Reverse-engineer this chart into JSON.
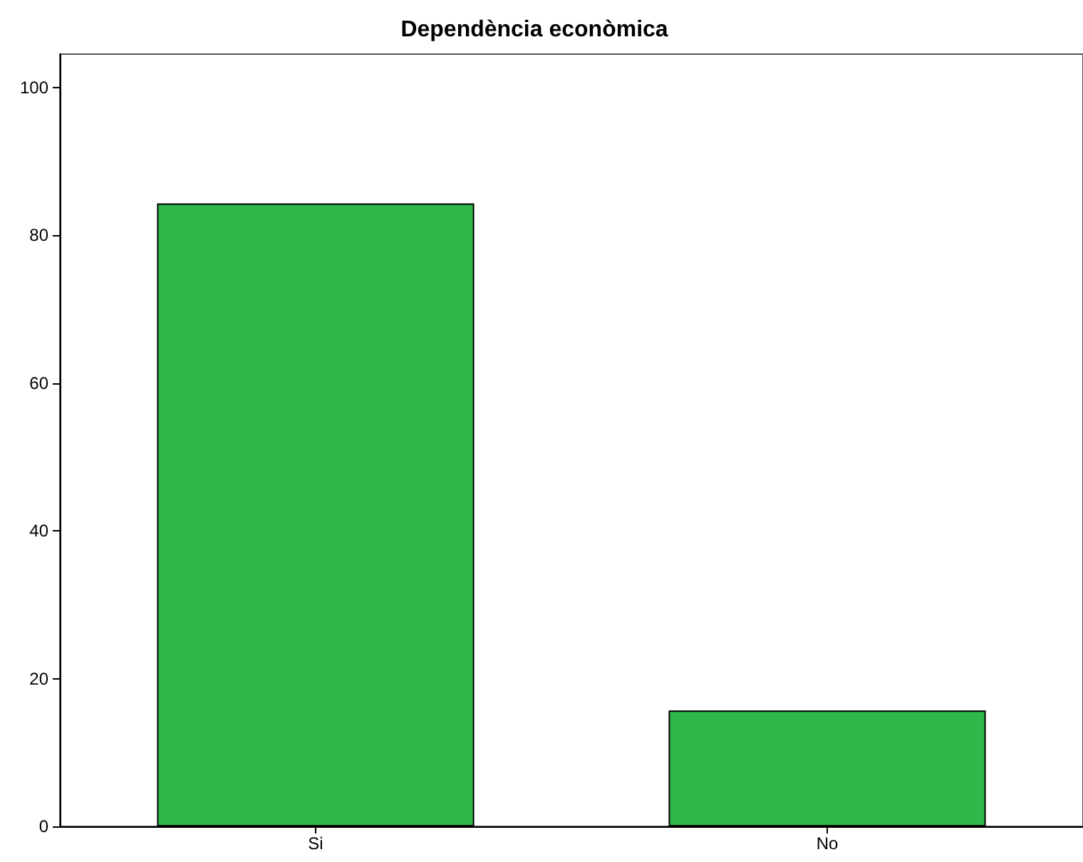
{
  "chart_data": {
    "type": "bar",
    "title": "Dependència econòmica",
    "categories": [
      "Si",
      "No"
    ],
    "values": [
      84.3,
      15.7
    ],
    "color": "#2fb84a",
    "ylim": [
      0,
      104.5
    ],
    "yticks": [
      0,
      20,
      40,
      60,
      80,
      100
    ],
    "grid": false
  }
}
